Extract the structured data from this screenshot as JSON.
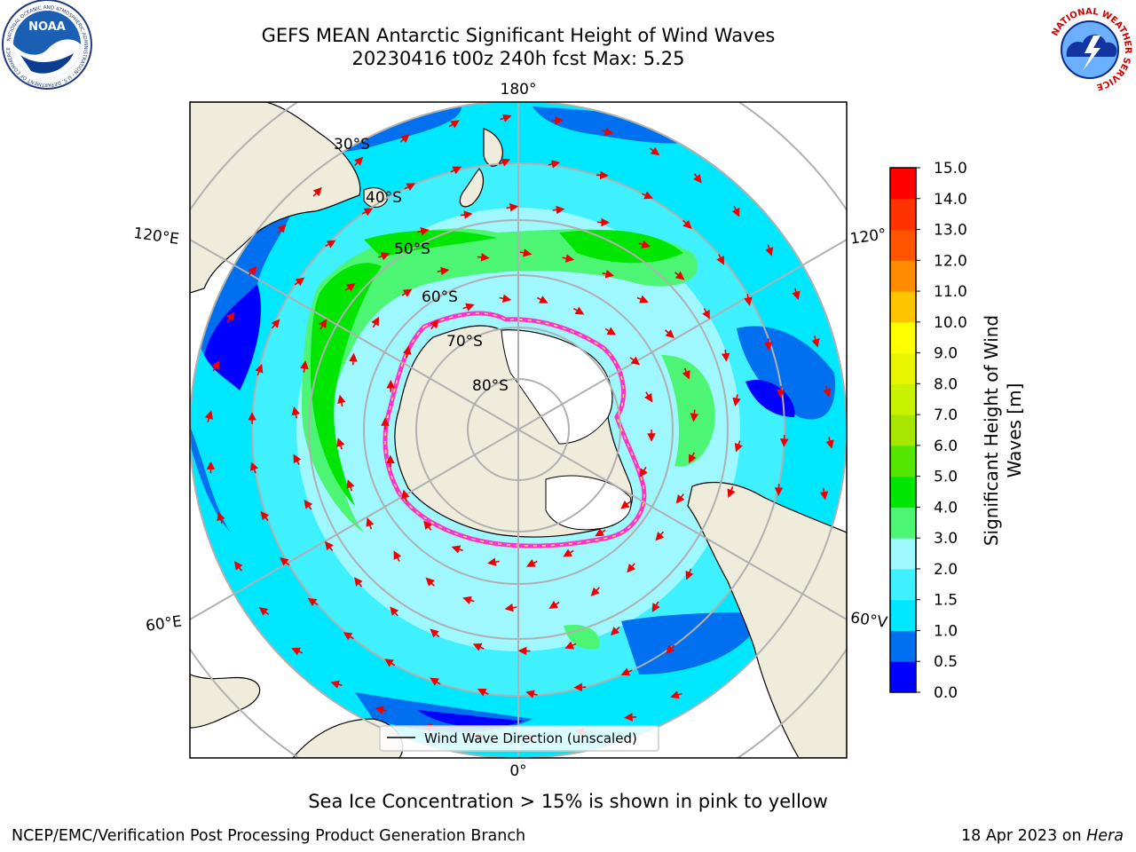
{
  "header": {
    "title_line1": "GEFS MEAN Antarctic Significant Height of Wind Waves",
    "title_line2": "20230416 t00z 240h fcst   Max: 5.25"
  },
  "logos": {
    "noaa": {
      "label": "NOAA",
      "ring_text": "NATIONAL OCEANIC AND ATMOSPHERIC ADMINISTRATION · U.S. DEPARTMENT OF COMMERCE"
    },
    "nws": {
      "ring_text": "NATIONAL WEATHER SERVICE"
    }
  },
  "map": {
    "projection": "South polar stereographic",
    "lon_labels": {
      "top": "180°",
      "bottom": "0°",
      "left_upper": "120°E",
      "left_lower": "60°E",
      "right_upper": "120°",
      "right_lower": "60°V"
    },
    "lat_labels": [
      "30°S",
      "40°S",
      "50°S",
      "60°S",
      "70°S",
      "80°S"
    ],
    "legend_label": "Wind Wave Direction (unscaled)",
    "colors": {
      "land": "#efecdc",
      "ice_sheet": "#ffffff",
      "sea_ice_edge": "#ff33cc",
      "arrow": "#ee0000",
      "grid": "#b0b0b0"
    }
  },
  "colorbar": {
    "label": "Significant Height of Wind Waves [m]",
    "label_line1": "Significant Height of Wind",
    "label_line2": "Waves [m]",
    "ticks": [
      "0.0",
      "0.5",
      "1.0",
      "1.5",
      "2.0",
      "3.0",
      "4.0",
      "5.0",
      "6.0",
      "7.0",
      "8.0",
      "9.0",
      "10.0",
      "11.0",
      "12.0",
      "13.0",
      "14.0",
      "15.0"
    ],
    "colors": [
      "#0000ff",
      "#0070f0",
      "#00e8ff",
      "#3ff0ff",
      "#9ff7ff",
      "#4cf574",
      "#00e600",
      "#55e600",
      "#a6e600",
      "#c9f200",
      "#e8f500",
      "#ffff00",
      "#ffc400",
      "#ff8c00",
      "#ff5500",
      "#ff3300",
      "#ff0000"
    ]
  },
  "notes": {
    "sea_ice": "Sea Ice Concentration > 15% is shown in pink to yellow"
  },
  "footer": {
    "left": "NCEP/EMC/Verification Post Processing Product Generation Branch",
    "right_date": "18 Apr 2023 on ",
    "right_machine": "Hera"
  }
}
